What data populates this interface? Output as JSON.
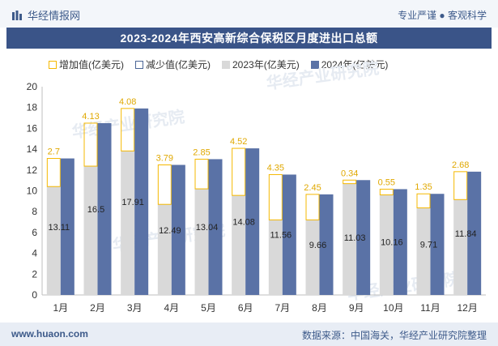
{
  "header": {
    "brand": "华经情报网",
    "tagline": "专业严谨 ● 客观科学"
  },
  "title": "2023-2024年西安高新综合保税区月度进出口总额",
  "footer": {
    "site": "www.huaon.com",
    "source": "数据来源：中国海关，华经产业研究院整理"
  },
  "watermark": "华经产业研究院",
  "colors": {
    "increase": "#f5b800",
    "decrease": "#4a6596",
    "y2023": "#d9d9d9",
    "y2024": "#5a72a6"
  },
  "chart_data": {
    "type": "bar",
    "categories": [
      "1月",
      "2月",
      "3月",
      "4月",
      "5月",
      "6月",
      "7月",
      "8月",
      "9月",
      "10月",
      "11月",
      "12月"
    ],
    "series": [
      {
        "name": "2023年(亿美元)",
        "values": [
          10.41,
          12.37,
          13.83,
          8.7,
          10.19,
          9.56,
          7.21,
          7.21,
          10.69,
          9.61,
          8.36,
          9.16
        ]
      },
      {
        "name": "2024年(亿美元)",
        "values": [
          13.11,
          16.5,
          17.91,
          12.49,
          13.04,
          14.08,
          11.56,
          9.66,
          11.03,
          10.16,
          9.71,
          11.84
        ]
      }
    ],
    "change": {
      "name_increase": "增加值(亿美元)",
      "name_decrease": "减少值(亿美元)",
      "values": [
        2.7,
        4.13,
        4.08,
        3.79,
        2.85,
        4.52,
        4.35,
        2.45,
        0.34,
        0.55,
        1.35,
        2.68
      ]
    },
    "ylim": [
      0,
      20
    ],
    "yticks": [
      0,
      2,
      4,
      6,
      8,
      10,
      12,
      14,
      16,
      18,
      20
    ],
    "legend_position": "top-left",
    "grid": false
  }
}
